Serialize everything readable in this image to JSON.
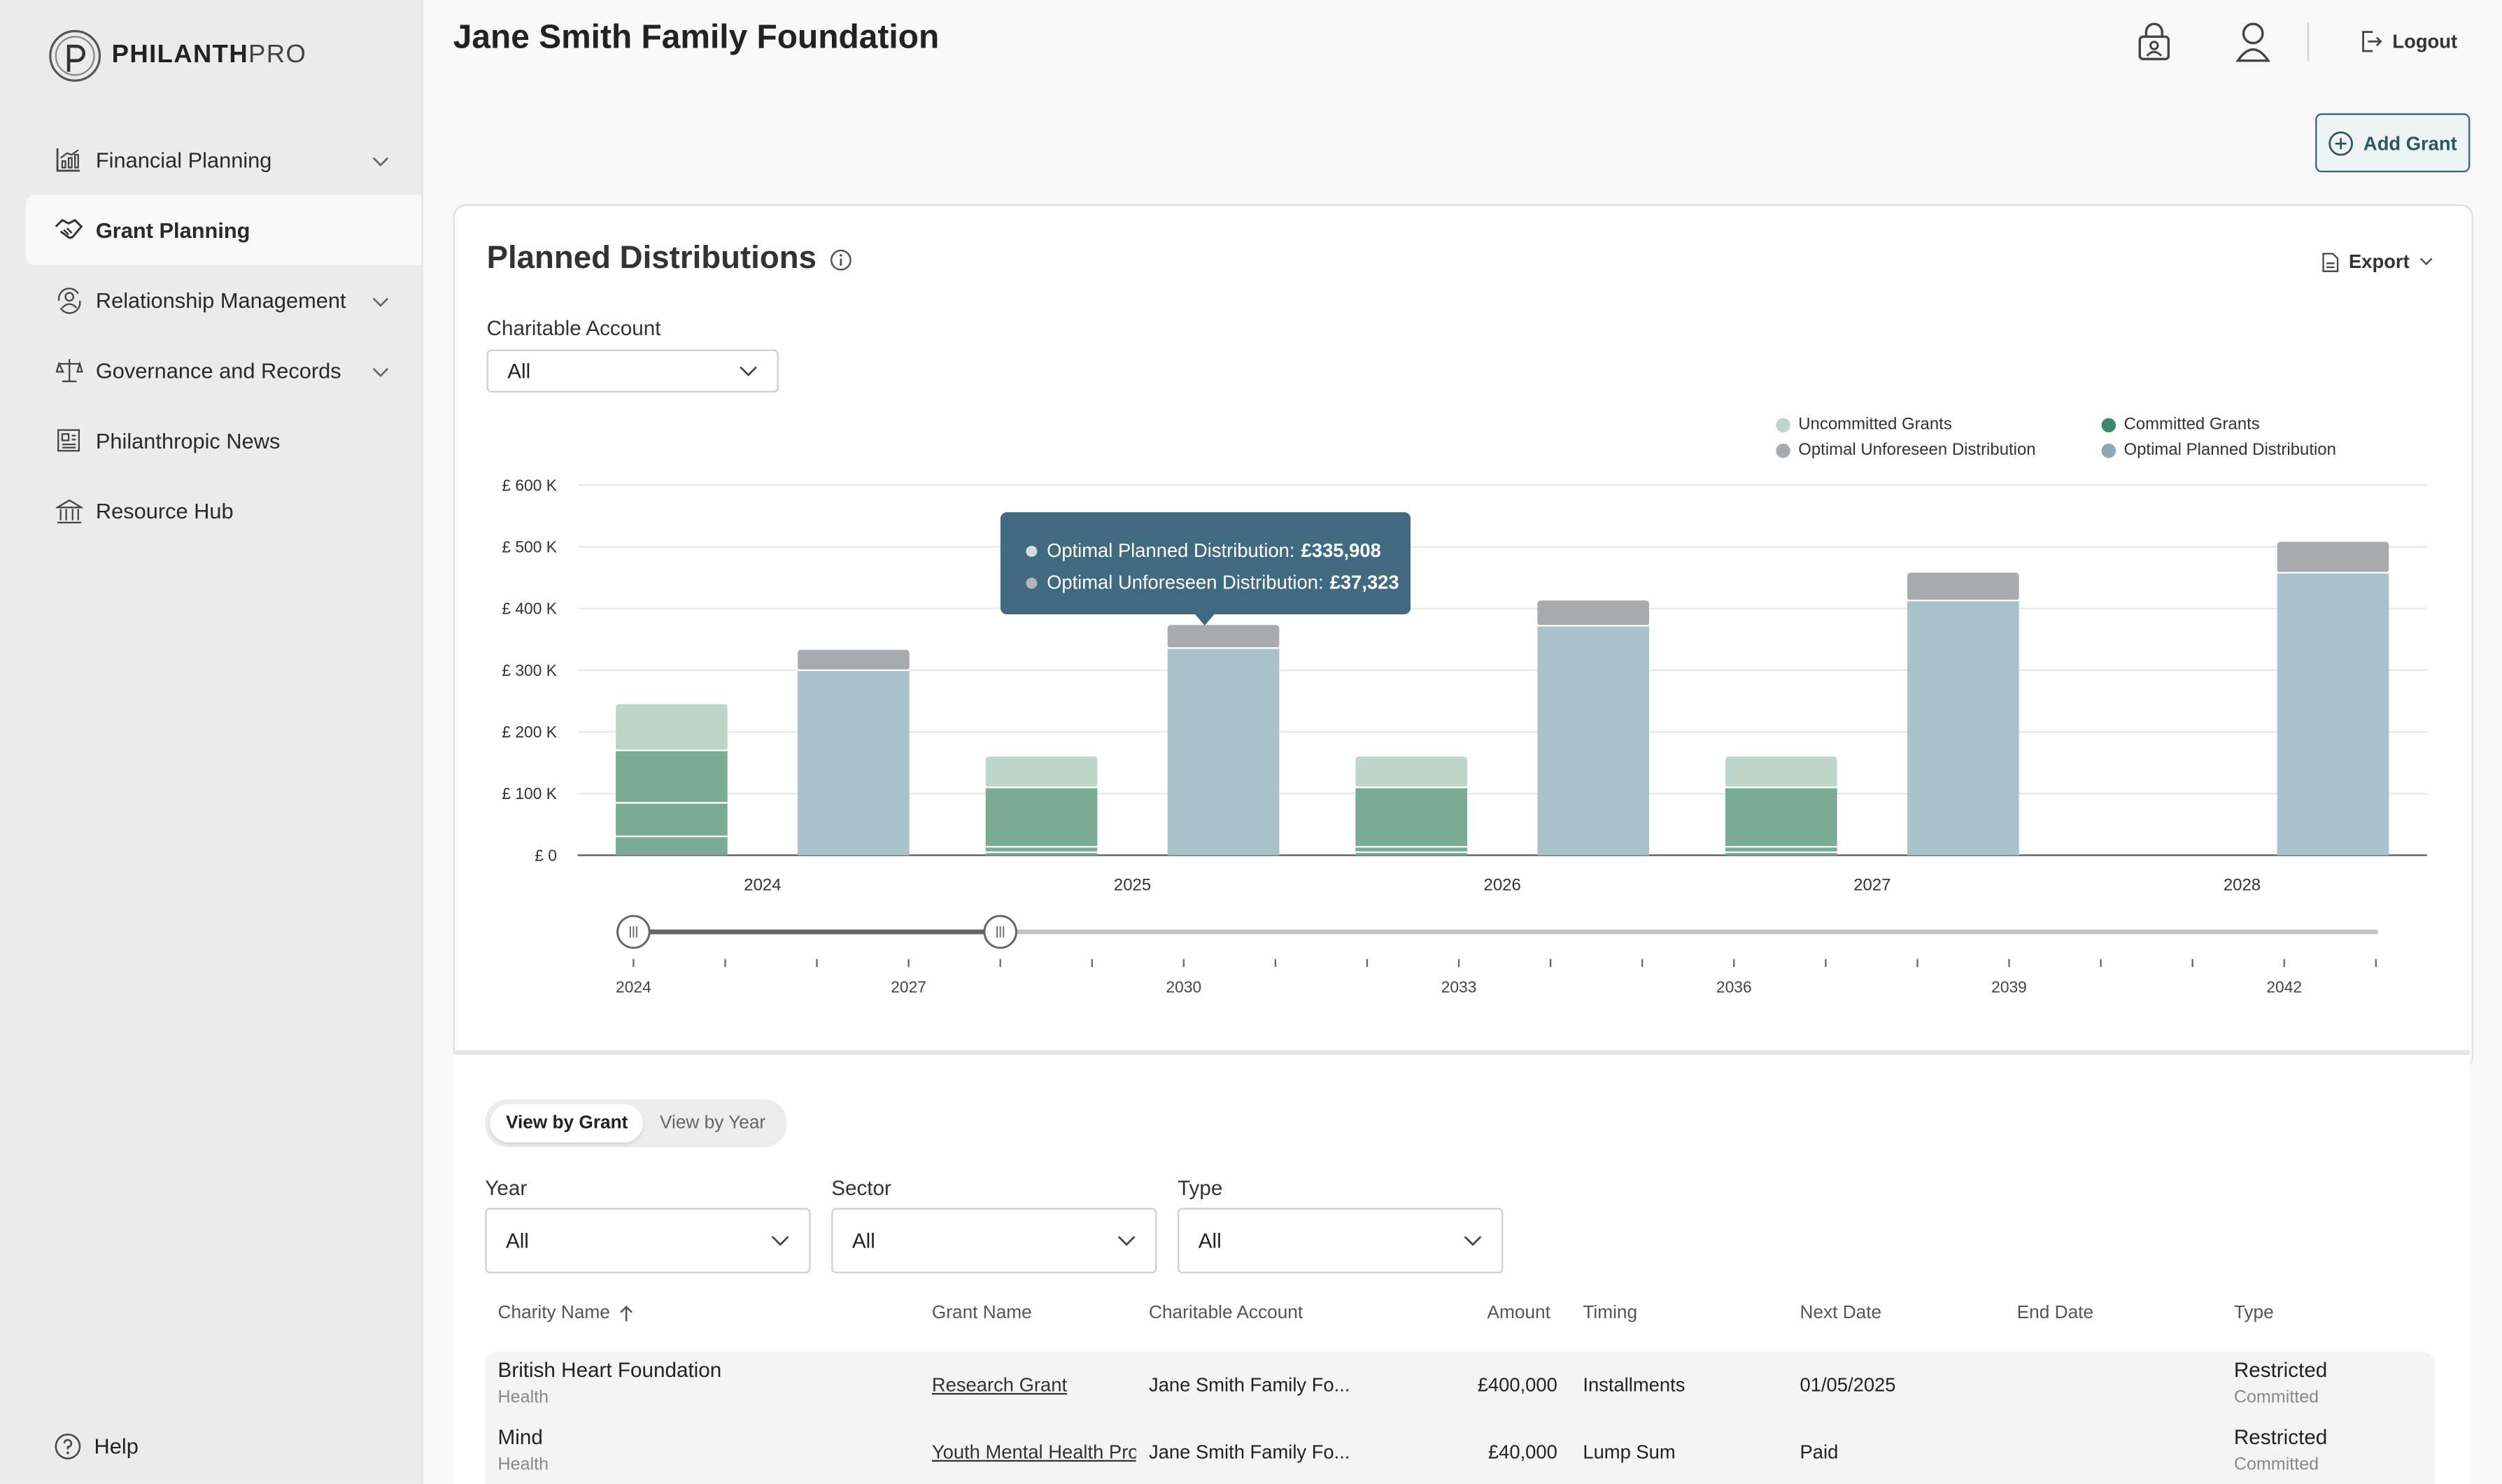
{
  "app": {
    "logo_bold": "PHILANTH",
    "logo_light": "PRO"
  },
  "sidebar": {
    "items": [
      {
        "label": "Financial Planning",
        "icon": "chart-growth-icon",
        "has_chevron": true
      },
      {
        "label": "Grant Planning",
        "icon": "handshake-icon",
        "active": true
      },
      {
        "label": "Relationship Management",
        "icon": "people-cycle-icon",
        "has_chevron": true
      },
      {
        "label": "Governance and Records",
        "icon": "scales-icon",
        "has_chevron": true
      },
      {
        "label": "Philanthropic News",
        "icon": "newspaper-icon"
      },
      {
        "label": "Resource Hub",
        "icon": "bank-building-icon"
      }
    ],
    "help": "Help"
  },
  "header": {
    "title": "Jane Smith Family Foundation",
    "logout": "Logout",
    "add_grant": "Add Grant"
  },
  "distributions": {
    "title": "Planned Distributions",
    "export": "Export",
    "account_label": "Charitable Account",
    "account_value": "All"
  },
  "colors": {
    "uncommitted": "#bcd6cb",
    "committed": "#7aab97",
    "unforeseen": "#a7abae",
    "planned": "#a9c1cb",
    "tooltip": "#3f6a80",
    "accent": "#3d6473"
  },
  "chart_data": {
    "type": "bar",
    "categories": [
      "2024",
      "2025",
      "2026",
      "2027",
      "2028"
    ],
    "y_ticks": [
      "£ 0",
      "£ 100 K",
      "£ 200 K",
      "£ 300 K",
      "£ 400 K",
      "£ 500 K",
      "£ 600 K"
    ],
    "ylim": [
      0,
      600000
    ],
    "legend": [
      "Uncommitted Grants",
      "Committed Grants",
      "Optimal Unforeseen Distribution",
      "Optimal Planned Distribution"
    ],
    "grants_stack": {
      "committed": [
        170000,
        110000,
        110000,
        110000,
        null
      ],
      "uncommitted": [
        75000,
        50000,
        50000,
        50000,
        null
      ]
    },
    "optimal_stack": {
      "planned": [
        300000,
        335908,
        372000,
        413000,
        458000
      ],
      "unforeseen": [
        33000,
        37323,
        41000,
        45000,
        50000
      ]
    },
    "tooltip": {
      "lines": [
        {
          "label": "Optimal Planned Distribution:",
          "value": "£335,908"
        },
        {
          "label": "Optimal Unforeseen Distribution:",
          "value": "£37,323"
        }
      ]
    },
    "range_slider": {
      "ticks": [
        "2024",
        "2027",
        "2030",
        "2033",
        "2036",
        "2039",
        "2042"
      ],
      "min_year": 2024,
      "max_year": 2043,
      "selected": [
        2024,
        2028
      ]
    }
  },
  "table_section": {
    "toggle": [
      "View by Grant",
      "View by Year"
    ],
    "filters": [
      {
        "label": "Year",
        "value": "All"
      },
      {
        "label": "Sector",
        "value": "All"
      },
      {
        "label": "Type",
        "value": "All"
      }
    ],
    "columns": [
      "Charity Name",
      "Grant Name",
      "Charitable Account",
      "Amount",
      "Timing",
      "Next Date",
      "End Date",
      "Type"
    ],
    "rows": [
      {
        "charity": "British Heart Foundation",
        "sector": "Health",
        "grant": "Research Grant",
        "account": "Jane Smith Family Fo...",
        "amount": "£400,000",
        "timing": "Installments",
        "next_date": "01/05/2025",
        "end_date": "",
        "type": "Restricted",
        "status": "Committed"
      },
      {
        "charity": "Mind",
        "sector": "Health",
        "grant": "Youth Mental Health Program",
        "account": "Jane Smith Family Fo...",
        "amount": "£40,000",
        "timing": "Lump Sum",
        "next_date": "Paid",
        "end_date": "",
        "type": "Restricted",
        "status": "Committed"
      }
    ]
  }
}
